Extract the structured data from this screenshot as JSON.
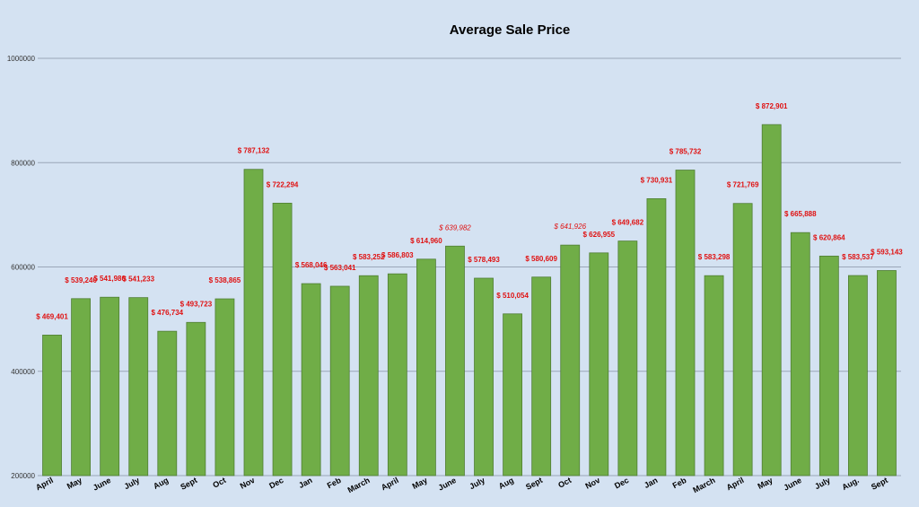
{
  "chart_data": {
    "type": "bar",
    "title": "Average Sale Price",
    "xlabel": "",
    "ylabel": "",
    "ylim": [
      200000,
      1000000
    ],
    "yticks": [
      200000,
      400000,
      600000,
      800000,
      1000000
    ],
    "ytick_labels": [
      "200000",
      "400000",
      "600000",
      "800000",
      "1000000"
    ],
    "grid": true,
    "legend": "none",
    "bar_color": "#70ad47",
    "label_color": "#e01010",
    "categories": [
      "April",
      "May",
      "June",
      "July",
      "Aug",
      "Sept",
      "Oct",
      "Nov",
      "Dec",
      "Jan",
      "Feb",
      "March",
      "April",
      "May",
      "June",
      "July",
      "Aug",
      "Sept",
      "Oct",
      "Nov",
      "Dec",
      "Jan",
      "Feb",
      "March",
      "April",
      "May",
      "June",
      "July",
      "Aug.",
      "Sept"
    ],
    "values": [
      469401,
      539240,
      541980,
      541233,
      476734,
      493723,
      538865,
      787132,
      722294,
      568046,
      563041,
      583252,
      586803,
      614960,
      639982,
      578493,
      510054,
      580609,
      641926,
      626955,
      649682,
      730931,
      785732,
      583298,
      721769,
      872901,
      665888,
      620864,
      583537,
      593143
    ],
    "data_labels": [
      "$ 469,401",
      "$ 539,240",
      "$ 541,980",
      "$ 541,233",
      "$ 476,734",
      "$ 493,723",
      "$ 538,865",
      "$ 787,132",
      "$ 722,294",
      "$ 568,046",
      "$ 563,041",
      "$ 583,252",
      "$ 586,803",
      "$ 614,960",
      "$ 639,982",
      "$ 578,493",
      "$ 510,054",
      "$ 580,609",
      "$ 641,926",
      "$ 626,955",
      "$ 649,682",
      "$ 730,931",
      "$ 785,732",
      "$ 583,298",
      "$ 721,769",
      "$ 872,901",
      "$ 665,888",
      "$ 620,864",
      "$ 583,537",
      "$ 593,143"
    ],
    "italic_labels": [
      14,
      18
    ]
  }
}
